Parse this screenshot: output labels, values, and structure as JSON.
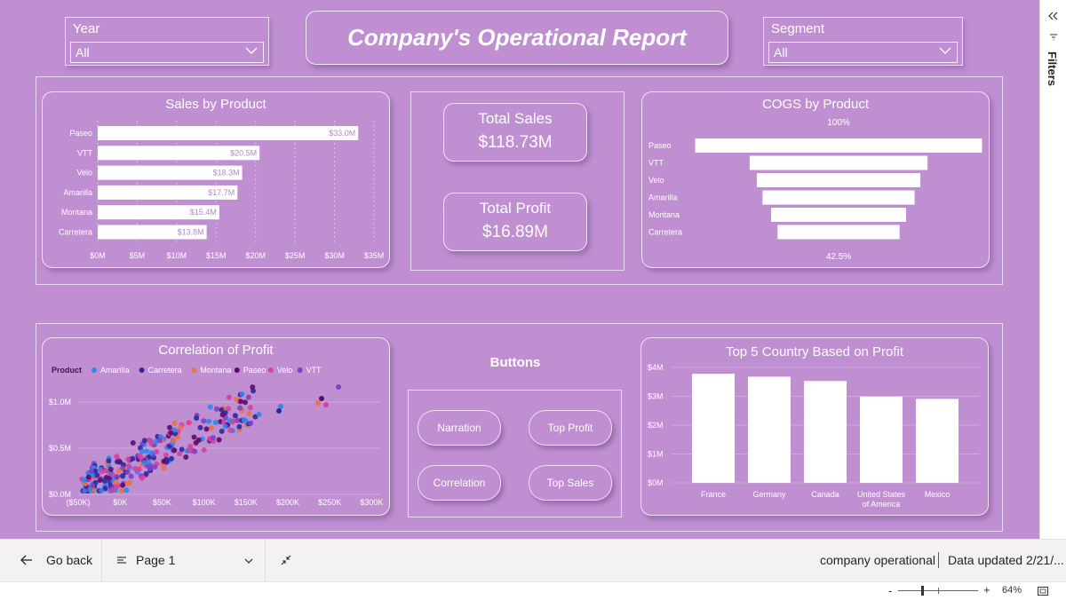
{
  "header": {
    "title": "Company's Operational Report",
    "year_slicer": {
      "label": "Year",
      "value": "All"
    },
    "segment_slicer": {
      "label": "Segment",
      "value": "All"
    }
  },
  "sales_by_product": {
    "title": "Sales by Product",
    "categories": [
      "Paseo",
      "VTT",
      "Velo",
      "Amarilla",
      "Montana",
      "Carretera"
    ],
    "values": [
      33.0,
      20.5,
      18.3,
      17.7,
      15.4,
      13.8
    ],
    "labels": [
      "$33.0M",
      "$20.5M",
      "$18.3M",
      "$17.7M",
      "$15.4M",
      "$13.8M"
    ],
    "x_ticks": [
      "$0M",
      "$5M",
      "$10M",
      "$15M",
      "$20M",
      "$25M",
      "$30M",
      "$35M"
    ],
    "xlim": [
      0,
      35
    ]
  },
  "kpis": {
    "total_sales": {
      "label": "Total Sales",
      "value": "$118.73M"
    },
    "total_profit": {
      "label": "Total Profit",
      "value": "$16.89M"
    }
  },
  "cogs_by_product": {
    "title": "COGS by Product",
    "top_label": "100%",
    "bottom_label": "42.5%",
    "categories": [
      "Paseo",
      "VTT",
      "Velo",
      "Amarilla",
      "Montana",
      "Carretera"
    ],
    "values_pct": [
      100,
      62,
      57,
      53,
      47,
      42.5
    ]
  },
  "correlation": {
    "title": "Correlation of Profit",
    "legend_title": "Product",
    "legend": [
      {
        "name": "Amarilla",
        "color": "#2f86eb"
      },
      {
        "name": "Carretera",
        "color": "#2a2a9e"
      },
      {
        "name": "Montana",
        "color": "#e8734a"
      },
      {
        "name": "Paseo",
        "color": "#5b0c6e"
      },
      {
        "name": "Velo",
        "color": "#d6409f"
      },
      {
        "name": "VTT",
        "color": "#7b40c8"
      }
    ],
    "x_ticks": [
      "($50K)",
      "$0K",
      "$50K",
      "$100K",
      "$150K",
      "$200K",
      "$250K",
      "$300K"
    ],
    "y_ticks": [
      "$0.0M",
      "$0.5M",
      "$1.0M"
    ]
  },
  "buttons": {
    "title": "Buttons",
    "narration": "Narration",
    "top_profit": "Top Profit",
    "correlation": "Correlation",
    "top_sales": "Top Sales"
  },
  "top_countries": {
    "title": "Top 5 Country Based on Profit",
    "categories": [
      "France",
      "Germany",
      "Canada",
      "United States of America",
      "Mexico"
    ],
    "category_lines": [
      [
        "France"
      ],
      [
        "Germany"
      ],
      [
        "Canada"
      ],
      [
        "United States",
        "of America"
      ],
      [
        "Mexico"
      ]
    ],
    "values": [
      3.78,
      3.68,
      3.53,
      2.99,
      2.91
    ],
    "y_ticks": [
      "$0M",
      "$1M",
      "$2M",
      "$3M",
      "$4M"
    ],
    "ylim": [
      0,
      4
    ]
  },
  "footer": {
    "go_back": "Go back",
    "page": "Page 1",
    "report_name": "company operational",
    "data_updated": "Data updated 2/21/...",
    "zoom": "64%",
    "zoom_minus": "-",
    "zoom_plus": "+"
  },
  "filters_pane": {
    "label": "Filters"
  }
}
